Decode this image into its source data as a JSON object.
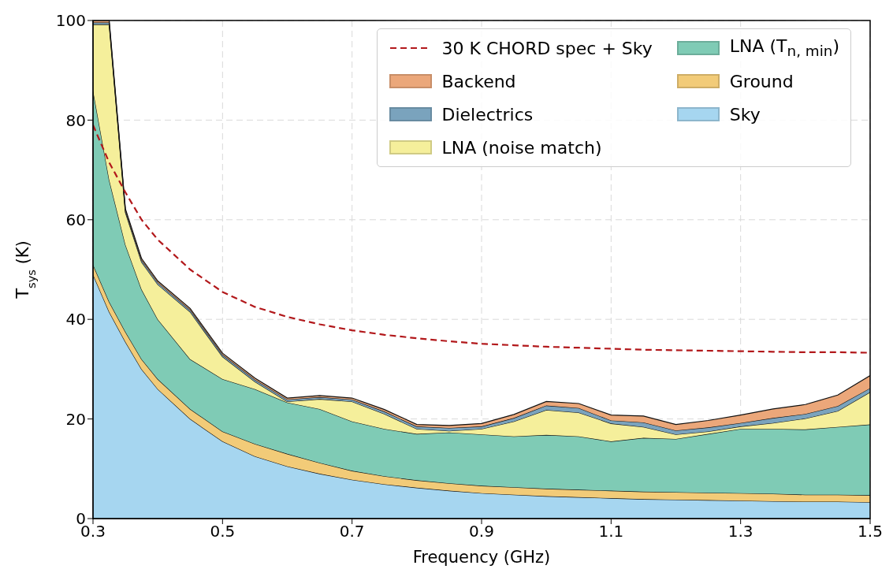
{
  "chart_data": {
    "type": "area",
    "stacked": true,
    "xlabel": "Frequency (GHz)",
    "ylabel": "T$_{sys}$ (K)",
    "x": [
      0.3,
      0.325,
      0.35,
      0.375,
      0.4,
      0.45,
      0.5,
      0.55,
      0.6,
      0.65,
      0.7,
      0.75,
      0.8,
      0.85,
      0.9,
      0.95,
      1.0,
      1.05,
      1.1,
      1.15,
      1.2,
      1.25,
      1.3,
      1.35,
      1.4,
      1.45,
      1.5
    ],
    "series": [
      {
        "name": "Sky",
        "color": "#a6d6f0",
        "values": [
          49,
          41.5,
          35.5,
          30,
          26,
          20,
          15.5,
          12.5,
          10.5,
          9,
          7.8,
          6.9,
          6.2,
          5.6,
          5.1,
          4.8,
          4.5,
          4.3,
          4.1,
          3.9,
          3.8,
          3.7,
          3.6,
          3.5,
          3.4,
          3.4,
          3.3
        ]
      },
      {
        "name": "Ground",
        "color": "#f2cb78",
        "values": [
          2,
          2,
          2,
          2,
          2,
          2,
          2,
          2.5,
          2.5,
          2.2,
          1.8,
          1.6,
          1.5,
          1.5,
          1.5,
          1.5,
          1.5,
          1.5,
          1.5,
          1.5,
          1.5,
          1.5,
          1.5,
          1.5,
          1.4,
          1.4,
          1.4
        ]
      },
      {
        "name": "LNA (T$_{n, min}$)",
        "color": "#7fcbb5",
        "values": [
          35,
          24.5,
          17.5,
          14,
          12,
          10,
          10.5,
          11,
          10.3,
          10.8,
          9.9,
          9.5,
          9.3,
          10.2,
          10.3,
          10.2,
          10.8,
          10.7,
          9.9,
          10.8,
          10.7,
          11.8,
          12.9,
          13,
          13.1,
          13.6,
          14.2
        ]
      },
      {
        "name": "LNA (noise match)",
        "color": "#f5ef9b",
        "values": [
          13.2,
          31.2,
          6.5,
          5.5,
          7,
          9.5,
          4.5,
          1.5,
          0.2,
          2,
          4,
          3,
          1,
          0.3,
          1.1,
          3,
          5,
          4.8,
          3.6,
          2.2,
          0.9,
          0.5,
          0.5,
          1.2,
          2.2,
          3.2,
          6.5
        ]
      },
      {
        "name": "Dielectrics",
        "color": "#7aa3bd",
        "values": [
          0.4,
          0.4,
          0.4,
          0.4,
          0.4,
          0.4,
          0.4,
          0.4,
          0.4,
          0.4,
          0.4,
          0.5,
          0.5,
          0.6,
          0.5,
          0.7,
          0.9,
          0.9,
          0.6,
          0.9,
          0.8,
          0.8,
          0.7,
          1.0,
          0.9,
          1.0,
          0.8
        ]
      },
      {
        "name": "Backend",
        "color": "#eba77a",
        "values": [
          0.4,
          0.4,
          0.3,
          0.3,
          0.3,
          0.3,
          0.3,
          0.3,
          0.3,
          0.3,
          0.3,
          0.4,
          0.4,
          0.5,
          0.6,
          0.7,
          0.8,
          0.9,
          1.1,
          1.3,
          1.2,
          1.4,
          1.6,
          1.8,
          1.9,
          2.2,
          2.5
        ]
      },
      {
        "name": "30 K CHORD spec + Sky",
        "type": "line",
        "line_style": "dashed",
        "color": "#b2181b",
        "values": [
          79,
          71.5,
          65.5,
          60,
          56,
          50,
          45.5,
          42.5,
          40.5,
          39,
          37.8,
          36.9,
          36.2,
          35.6,
          35.1,
          34.8,
          34.5,
          34.3,
          34.1,
          33.9,
          33.8,
          33.7,
          33.6,
          33.5,
          33.4,
          33.4,
          33.3
        ]
      }
    ],
    "xlim": [
      0.3,
      1.5
    ],
    "xticks": [
      0.3,
      0.5,
      0.7,
      0.9,
      1.1,
      1.3,
      1.5
    ],
    "ylim": [
      0,
      100
    ],
    "yticks": [
      0,
      20,
      40,
      60,
      80,
      100
    ],
    "grid": true,
    "legend": "top right"
  }
}
